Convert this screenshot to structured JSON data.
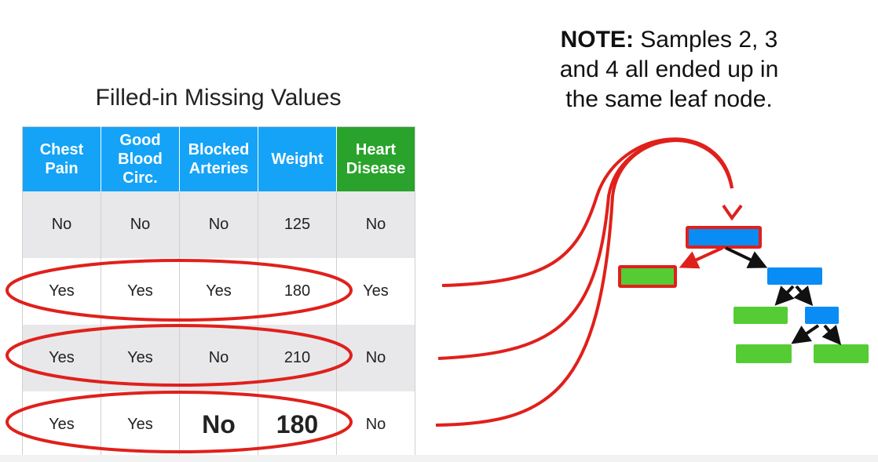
{
  "title": "Filled-in Missing Values",
  "note": {
    "bold": "NOTE:",
    "line1": " Samples 2, 3",
    "line2": "and 4 all ended up in",
    "line3": "the same leaf node."
  },
  "table": {
    "headers": [
      {
        "label": "Chest Pain"
      },
      {
        "label": "Good Blood Circ."
      },
      {
        "label": "Blocked Arteries"
      },
      {
        "label": "Weight"
      },
      {
        "label": "Heart Disease"
      }
    ],
    "rows": [
      [
        "No",
        "No",
        "No",
        "125",
        "No"
      ],
      [
        "Yes",
        "Yes",
        "Yes",
        "180",
        "Yes"
      ],
      [
        "Yes",
        "Yes",
        "No",
        "210",
        "No"
      ],
      [
        "Yes",
        "Yes",
        "No",
        "180",
        "No"
      ]
    ]
  },
  "colors": {
    "header_blue": "#14a3f7",
    "header_green": "#29a32b",
    "highlight_red": "#e0201b",
    "node_blue": "#0a8cf5",
    "node_green": "#55cc33"
  }
}
